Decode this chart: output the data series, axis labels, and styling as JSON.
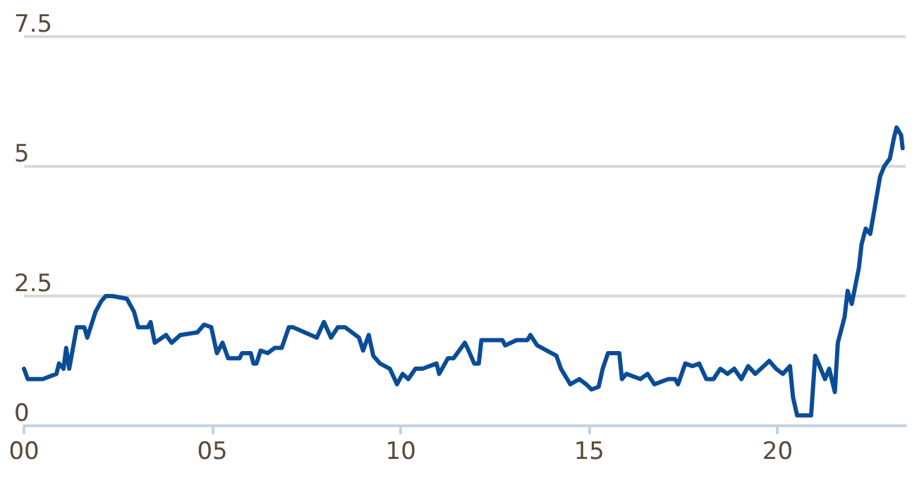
{
  "chart_data": {
    "type": "line",
    "xlim": [
      2000,
      2023.4
    ],
    "ylim": [
      0,
      7.5
    ],
    "xticks": [
      {
        "value": 2000,
        "label": "00"
      },
      {
        "value": 2005,
        "label": "05"
      },
      {
        "value": 2010,
        "label": "10"
      },
      {
        "value": 2015,
        "label": "15"
      },
      {
        "value": 2020,
        "label": "20"
      }
    ],
    "yticks": [
      0,
      2.5,
      5,
      7.5
    ],
    "grid": "y",
    "line_style": "solid",
    "marker": "none",
    "series": [
      {
        "color": "#0b4c97",
        "x": [
          2000.0,
          2000.1,
          2000.5,
          2000.86,
          2000.93,
          2001.05,
          2001.12,
          2001.2,
          2001.4,
          2001.6,
          2001.68,
          2001.9,
          2002.05,
          2002.17,
          2002.35,
          2002.73,
          2002.92,
          2003.03,
          2003.29,
          2003.36,
          2003.47,
          2003.77,
          2003.92,
          2004.15,
          2004.6,
          2004.78,
          2004.97,
          2005.12,
          2005.27,
          2005.42,
          2005.72,
          2005.79,
          2006.02,
          2006.09,
          2006.17,
          2006.28,
          2006.47,
          2006.65,
          2006.84,
          2007.03,
          2007.14,
          2007.77,
          2007.96,
          2008.15,
          2008.33,
          2008.52,
          2008.89,
          2009.0,
          2009.15,
          2009.27,
          2009.45,
          2009.71,
          2009.9,
          2010.05,
          2010.2,
          2010.39,
          2010.58,
          2010.95,
          2011.02,
          2011.25,
          2011.4,
          2011.7,
          2011.77,
          2011.95,
          2012.07,
          2012.14,
          2012.7,
          2012.77,
          2013.07,
          2013.36,
          2013.44,
          2013.62,
          2014.13,
          2014.25,
          2014.5,
          2014.74,
          2014.92,
          2015.06,
          2015.25,
          2015.36,
          2015.5,
          2015.8,
          2015.87,
          2015.99,
          2016.36,
          2016.55,
          2016.73,
          2017.1,
          2017.28,
          2017.36,
          2017.55,
          2017.74,
          2017.92,
          2018.11,
          2018.3,
          2018.48,
          2018.67,
          2018.85,
          2019.04,
          2019.22,
          2019.41,
          2019.78,
          2019.96,
          2020.14,
          2020.33,
          2020.41,
          2020.52,
          2020.89,
          2021.0,
          2021.26,
          2021.37,
          2021.52,
          2021.6,
          2021.78,
          2021.86,
          2021.97,
          2022.16,
          2022.23,
          2022.34,
          2022.46,
          2022.72,
          2022.83,
          2022.98,
          2023.09,
          2023.16,
          2023.28,
          2023.32
        ],
        "values": [
          1.1,
          0.9,
          0.9,
          1.0,
          1.2,
          1.1,
          1.5,
          1.1,
          1.9,
          1.9,
          1.7,
          2.2,
          2.4,
          2.5,
          2.5,
          2.45,
          2.2,
          1.9,
          1.9,
          2.0,
          1.6,
          1.75,
          1.6,
          1.75,
          1.8,
          1.95,
          1.9,
          1.4,
          1.6,
          1.3,
          1.3,
          1.4,
          1.4,
          1.2,
          1.2,
          1.45,
          1.4,
          1.5,
          1.5,
          1.9,
          1.9,
          1.7,
          2.0,
          1.7,
          1.9,
          1.9,
          1.7,
          1.45,
          1.75,
          1.35,
          1.2,
          1.1,
          0.8,
          1.0,
          0.9,
          1.1,
          1.1,
          1.2,
          1.0,
          1.3,
          1.3,
          1.6,
          1.5,
          1.2,
          1.2,
          1.65,
          1.65,
          1.55,
          1.65,
          1.65,
          1.75,
          1.55,
          1.35,
          1.1,
          0.8,
          0.9,
          0.8,
          0.7,
          0.75,
          1.1,
          1.4,
          1.4,
          0.9,
          1.0,
          0.9,
          1.0,
          0.8,
          0.9,
          0.9,
          0.8,
          1.2,
          1.15,
          1.2,
          0.9,
          0.9,
          1.1,
          1.0,
          1.1,
          0.9,
          1.15,
          1.0,
          1.25,
          1.1,
          1.0,
          1.15,
          0.55,
          0.2,
          0.2,
          1.35,
          0.9,
          1.1,
          0.65,
          1.6,
          2.1,
          2.6,
          2.35,
          3.05,
          3.5,
          3.8,
          3.7,
          4.8,
          5.0,
          5.15,
          5.55,
          5.75,
          5.6,
          5.35
        ]
      }
    ]
  }
}
